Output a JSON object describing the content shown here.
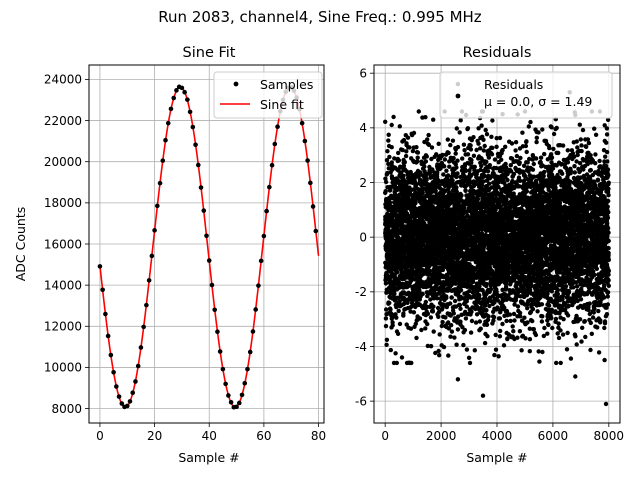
{
  "figure": {
    "suptitle": "Run 2083, channel4, Sine Freq.: 0.995 MHz"
  },
  "chart_data": [
    {
      "type": "line",
      "title": "Sine Fit",
      "xlabel": "Sample #",
      "ylabel": "ADC Counts",
      "xlim": [
        -4,
        82
      ],
      "ylim": [
        7300,
        24700
      ],
      "xticks": [
        0,
        20,
        40,
        60,
        80
      ],
      "yticks": [
        8000,
        10000,
        12000,
        14000,
        16000,
        18000,
        20000,
        22000,
        24000
      ],
      "grid": true,
      "legend": {
        "position": "top-right"
      },
      "fit": {
        "mean": 15850,
        "amplitude": 7780,
        "period": 40.2,
        "phase_sample": 9.3
      },
      "series": [
        {
          "name": "Samples",
          "style": "points",
          "color": "#000000",
          "x_start": 0,
          "x_end": 79
        },
        {
          "name": "Sine fit",
          "style": "line",
          "color": "#ff0000",
          "x_start": 0,
          "x_end": 80
        }
      ]
    },
    {
      "type": "scatter",
      "title": "Residuals",
      "xlabel": "Sample #",
      "ylabel": "",
      "xlim": [
        -400,
        8400
      ],
      "ylim": [
        -6.8,
        6.3
      ],
      "xticks": [
        0,
        2000,
        4000,
        6000,
        8000
      ],
      "yticks": [
        -6,
        -4,
        -2,
        0,
        2,
        4,
        6
      ],
      "grid": true,
      "legend": {
        "position": "top-right"
      },
      "series": [
        {
          "name": "Residuals",
          "color": "#000000",
          "mean": 0.0,
          "sigma": 1.49,
          "n_points": 8000
        }
      ],
      "legend_stats": {
        "mu_label": "μ = 0.0, ",
        "sigma_label": "σ = 1.49"
      },
      "outliers": [
        {
          "x": 2600,
          "y": -5.2
        },
        {
          "x": 3500,
          "y": -5.8
        },
        {
          "x": 7900,
          "y": -6.1
        },
        {
          "x": 6800,
          "y": -5.1
        },
        {
          "x": 2600,
          "y": 5.6
        },
        {
          "x": 6600,
          "y": 5.3
        },
        {
          "x": 600,
          "y": -4.4
        },
        {
          "x": 7850,
          "y": -4.5
        },
        {
          "x": 4200,
          "y": 4.5
        },
        {
          "x": 300,
          "y": 4.4
        }
      ]
    }
  ]
}
